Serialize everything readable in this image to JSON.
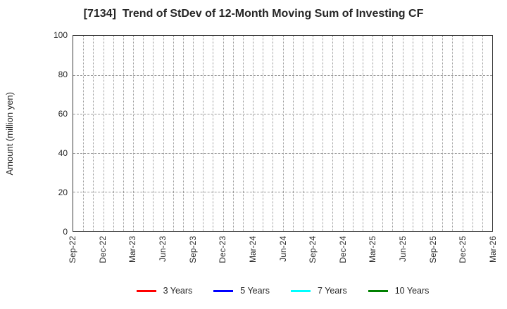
{
  "chart_data": {
    "type": "line",
    "title": "[7134]  Trend of StDev of 12-Month Moving Sum of Investing CF",
    "xlabel": "",
    "ylabel": "Amount (million yen)",
    "ylim": [
      0,
      100
    ],
    "yticks": [
      0,
      20,
      40,
      60,
      80,
      100
    ],
    "x_tick_labels": [
      "Sep-22",
      "Dec-22",
      "Mar-23",
      "Jun-23",
      "Sep-23",
      "Dec-23",
      "Mar-24",
      "Jun-24",
      "Sep-24",
      "Dec-24",
      "Mar-25",
      "Jun-25",
      "Sep-25",
      "Dec-25",
      "Mar-26"
    ],
    "x_minor_intervals_total": 42,
    "grid": {
      "vertical": "dotted, one line per month",
      "horizontal": "dashed at y ticks 20/40/60/80",
      "color": "#9a9a9a"
    },
    "legend": {
      "position": "bottom-center",
      "entries": [
        {
          "label": "3 Years",
          "color": "#ff0000"
        },
        {
          "label": "5 Years",
          "color": "#0000ff"
        },
        {
          "label": "7 Years",
          "color": "#00ffff"
        },
        {
          "label": "10 Years",
          "color": "#008000"
        }
      ]
    },
    "series": [
      {
        "name": "3 Years",
        "color": "#ff0000",
        "values": []
      },
      {
        "name": "5 Years",
        "color": "#0000ff",
        "values": []
      },
      {
        "name": "7 Years",
        "color": "#00ffff",
        "values": []
      },
      {
        "name": "10 Years",
        "color": "#008000",
        "values": []
      }
    ],
    "plot_state": "empty - no data lines drawn in plot area"
  }
}
